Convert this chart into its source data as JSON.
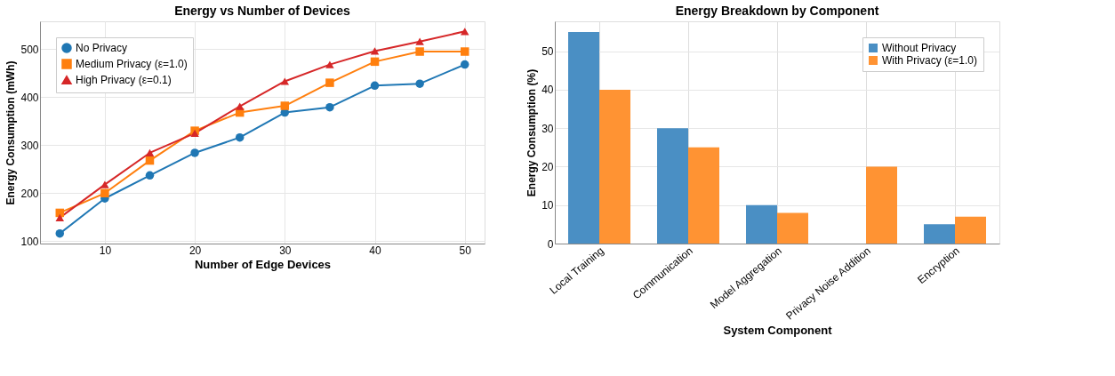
{
  "chart_data": [
    {
      "type": "line",
      "title": "Energy vs Number of Devices",
      "xlabel": "Number of Edge Devices",
      "ylabel": "Energy Consumption (mWh)",
      "x": [
        5,
        10,
        15,
        20,
        25,
        30,
        35,
        40,
        45,
        50
      ],
      "series": [
        {
          "name": "No Privacy",
          "color": "#1f77b4",
          "marker": "circle",
          "values": [
            116,
            189,
            237,
            284,
            316,
            368,
            379,
            424,
            428,
            468
          ]
        },
        {
          "name": "Medium Privacy (ε=1.0)",
          "color": "#ff7f0e",
          "marker": "square",
          "values": [
            159,
            200,
            268,
            330,
            368,
            382,
            430,
            474,
            495,
            495
          ]
        },
        {
          "name": "High Privacy (ε=0.1)",
          "color": "#d62728",
          "marker": "triangle",
          "values": [
            149,
            218,
            284,
            325,
            381,
            433,
            468,
            496,
            516,
            537
          ]
        }
      ],
      "xlim": [
        2.8,
        52.2
      ],
      "ylim": [
        95,
        558
      ],
      "xticks": [
        10,
        20,
        30,
        40,
        50
      ],
      "yticks": [
        100,
        200,
        300,
        400,
        500
      ],
      "grid": true,
      "legend": "top left",
      "line_style": "solid"
    },
    {
      "type": "bar",
      "title": "Energy Breakdown by Component",
      "xlabel": "System Component",
      "ylabel": "Energy Consumption (%)",
      "categories": [
        "Local Training",
        "Communication",
        "Model Aggregation",
        "Privacy Noise Addition",
        "Encryption"
      ],
      "series": [
        {
          "name": "Without Privacy",
          "color": "#4a8fc4",
          "values": [
            55,
            30,
            10,
            0,
            5
          ]
        },
        {
          "name": "With Privacy (ε=1.0)",
          "color": "#ff9333",
          "values": [
            40,
            25,
            8,
            20,
            7
          ]
        }
      ],
      "ylim": [
        0,
        57.8
      ],
      "yticks": [
        0,
        10,
        20,
        30,
        40,
        50
      ],
      "grid": true,
      "legend": "top right"
    }
  ]
}
